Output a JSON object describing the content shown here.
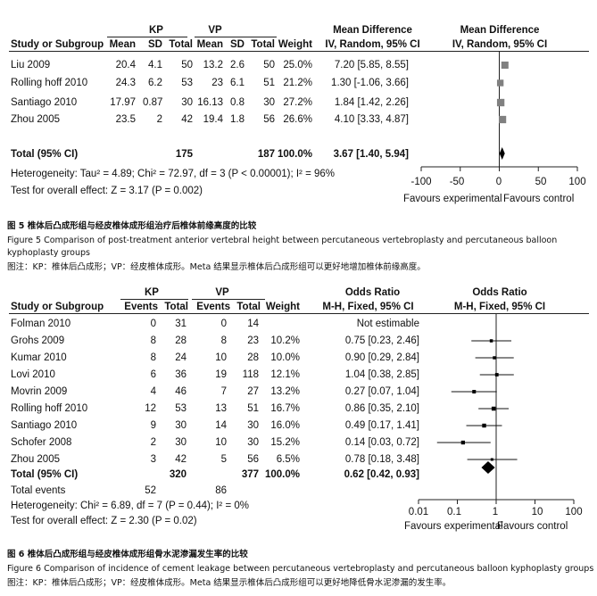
{
  "figure5": {
    "group_headers": {
      "kp": "KP",
      "vp": "VP",
      "effect": "Mean Difference",
      "effect_plot": "Mean Difference"
    },
    "columns": [
      "Study or Subgroup",
      "Mean",
      "SD",
      "Total",
      "Mean",
      "SD",
      "Total",
      "Weight",
      "IV, Random, 95% CI",
      "IV, Random, 95% CI"
    ],
    "rows": [
      {
        "study": "Liu 2009",
        "kp_mean": "20.4",
        "kp_sd": "4.1",
        "kp_total": "50",
        "vp_mean": "13.2",
        "vp_sd": "2.6",
        "vp_total": "50",
        "weight": "25.0%",
        "ci": "7.20 [5.85, 8.55]"
      },
      {
        "study": "Rolling hoff 2010",
        "kp_mean": "24.3",
        "kp_sd": "6.2",
        "kp_total": "53",
        "vp_mean": "23",
        "vp_sd": "6.1",
        "vp_total": "51",
        "weight": "21.2%",
        "ci": "1.30 [-1.06, 3.66]"
      },
      {
        "study": "Santiago 2010",
        "kp_mean": "17.97",
        "kp_sd": "0.87",
        "kp_total": "30",
        "vp_mean": "16.13",
        "vp_sd": "0.8",
        "vp_total": "30",
        "weight": "27.2%",
        "ci": "1.84 [1.42, 2.26]"
      },
      {
        "study": "Zhou 2005",
        "kp_mean": "23.5",
        "kp_sd": "2",
        "kp_total": "42",
        "vp_mean": "19.4",
        "vp_sd": "1.8",
        "vp_total": "56",
        "weight": "26.6%",
        "ci": "4.10 [3.33, 4.87]"
      }
    ],
    "total": {
      "label": "Total (95% CI)",
      "kp_total": "175",
      "vp_total": "187",
      "weight": "100.0%",
      "ci": "3.67 [1.40, 5.94]"
    },
    "heterogeneity": "Heterogeneity: Tau² = 4.89; Chi² = 72.97, df = 3 (P < 0.00001); I² = 96%",
    "overall_effect": "Test for overall effect: Z = 3.17 (P = 0.002)",
    "axis": {
      "ticks": [
        "-100",
        "-50",
        "0",
        "50",
        "100"
      ],
      "favours_left": "Favours experimental",
      "favours_right": "Favours control"
    },
    "caption_cn": "图 5   椎体后凸成形组与经皮椎体成形组治疗后椎体前缘高度的比较",
    "caption_en_1": "Figure 5    Comparison of post-treatment anterior vertebral height between percutaneous vertebroplasty and percutaneous balloon",
    "caption_en_2": "kyphoplasty groups",
    "caption_note": "图注：KP：椎体后凸成形；VP：经皮椎体成形。Meta 结果显示椎体后凸成形组可以更好地增加椎体前缘高度。"
  },
  "figure6": {
    "group_headers": {
      "kp": "KP",
      "vp": "VP",
      "effect": "Odds Ratio",
      "effect_plot": "Odds Ratio"
    },
    "columns": [
      "Study or Subgroup",
      "Events",
      "Total",
      "Events",
      "Total",
      "Weight",
      "M-H, Fixed, 95% CI",
      "M-H, Fixed, 95% CI"
    ],
    "rows": [
      {
        "study": "Folman 2010",
        "kp_events": "0",
        "kp_total": "31",
        "vp_events": "0",
        "vp_total": "14",
        "weight": "",
        "ci": "Not estimable"
      },
      {
        "study": "Grohs 2009",
        "kp_events": "8",
        "kp_total": "28",
        "vp_events": "8",
        "vp_total": "23",
        "weight": "10.2%",
        "ci": "0.75 [0.23, 2.46]"
      },
      {
        "study": "Kumar 2010",
        "kp_events": "8",
        "kp_total": "24",
        "vp_events": "10",
        "vp_total": "28",
        "weight": "10.0%",
        "ci": "0.90 [0.29, 2.84]"
      },
      {
        "study": "Lovi 2010",
        "kp_events": "6",
        "kp_total": "36",
        "vp_events": "19",
        "vp_total": "118",
        "weight": "12.1%",
        "ci": "1.04 [0.38, 2.85]"
      },
      {
        "study": "Movrin 2009",
        "kp_events": "4",
        "kp_total": "46",
        "vp_events": "7",
        "vp_total": "27",
        "weight": "13.2%",
        "ci": "0.27 [0.07, 1.04]"
      },
      {
        "study": "Rolling hoff 2010",
        "kp_events": "12",
        "kp_total": "53",
        "vp_events": "13",
        "vp_total": "51",
        "weight": "16.7%",
        "ci": "0.86 [0.35, 2.10]"
      },
      {
        "study": "Santiago 2010",
        "kp_events": "9",
        "kp_total": "30",
        "vp_events": "14",
        "vp_total": "30",
        "weight": "16.0%",
        "ci": "0.49 [0.17, 1.41]"
      },
      {
        "study": "Schofer 2008",
        "kp_events": "2",
        "kp_total": "30",
        "vp_events": "10",
        "vp_total": "30",
        "weight": "15.2%",
        "ci": "0.14 [0.03, 0.72]"
      },
      {
        "study": "Zhou 2005",
        "kp_events": "3",
        "kp_total": "42",
        "vp_events": "5",
        "vp_total": "56",
        "weight": "6.5%",
        "ci": "0.78 [0.18, 3.48]"
      }
    ],
    "total": {
      "label": "Total (95% CI)",
      "kp_total": "320",
      "vp_total": "377",
      "weight": "100.0%",
      "ci": "0.62 [0.42, 0.93]"
    },
    "total_events": {
      "label": "Total events",
      "kp": "52",
      "vp": "86"
    },
    "heterogeneity": "Heterogeneity: Chi² = 6.89, df = 7 (P = 0.44); I² = 0%",
    "overall_effect": "Test for overall effect: Z = 2.30 (P = 0.02)",
    "axis": {
      "ticks": [
        "0.01",
        "0.1",
        "1",
        "10",
        "100"
      ],
      "favours_left": "Favours experimental",
      "favours_right": "Favours control"
    },
    "caption_cn": "图 6   椎体后凸成形组与经皮椎体成形组骨水泥渗漏发生率的比较",
    "caption_en_1": "Figure 6    Comparison of incidence of cement leakage between percutaneous vertebroplasty and percutaneous balloon kyphoplasty groups",
    "caption_note": "图注：KP：椎体后凸成形；VP：经皮椎体成形。Meta 结果显示椎体后凸成形组可以更好地降低骨水泥渗漏的发生率。"
  },
  "chart_data": [
    {
      "type": "scatter",
      "x_scale": "linear",
      "xlim": [
        -100,
        100
      ],
      "x_ticks": [
        -100,
        -50,
        0,
        50,
        100
      ],
      "null_line": 0,
      "studies": [
        {
          "name": "Liu 2009",
          "estimate": 7.2,
          "lower": 5.85,
          "upper": 8.55,
          "weight": 25.0
        },
        {
          "name": "Rolling hoff 2010",
          "estimate": 1.3,
          "lower": -1.06,
          "upper": 3.66,
          "weight": 21.2
        },
        {
          "name": "Santiago 2010",
          "estimate": 1.84,
          "lower": 1.42,
          "upper": 2.26,
          "weight": 27.2
        },
        {
          "name": "Zhou 2005",
          "estimate": 4.1,
          "lower": 3.33,
          "upper": 4.87,
          "weight": 26.6
        }
      ],
      "pooled": {
        "estimate": 3.67,
        "lower": 1.4,
        "upper": 5.94
      },
      "marker_color": "#808080"
    },
    {
      "type": "scatter",
      "x_scale": "log",
      "xlim": [
        0.01,
        100
      ],
      "x_ticks": [
        0.01,
        0.1,
        1,
        10,
        100
      ],
      "null_line": 1,
      "studies": [
        {
          "name": "Folman 2010",
          "estimate": null,
          "lower": null,
          "upper": null,
          "weight": null
        },
        {
          "name": "Grohs 2009",
          "estimate": 0.75,
          "lower": 0.23,
          "upper": 2.46,
          "weight": 10.2
        },
        {
          "name": "Kumar 2010",
          "estimate": 0.9,
          "lower": 0.29,
          "upper": 2.84,
          "weight": 10.0
        },
        {
          "name": "Lovi 2010",
          "estimate": 1.04,
          "lower": 0.38,
          "upper": 2.85,
          "weight": 12.1
        },
        {
          "name": "Movrin 2009",
          "estimate": 0.27,
          "lower": 0.07,
          "upper": 1.04,
          "weight": 13.2
        },
        {
          "name": "Rolling hoff 2010",
          "estimate": 0.86,
          "lower": 0.35,
          "upper": 2.1,
          "weight": 16.7
        },
        {
          "name": "Santiago 2010",
          "estimate": 0.49,
          "lower": 0.17,
          "upper": 1.41,
          "weight": 16.0
        },
        {
          "name": "Schofer 2008",
          "estimate": 0.14,
          "lower": 0.03,
          "upper": 0.72,
          "weight": 15.2
        },
        {
          "name": "Zhou 2005",
          "estimate": 0.78,
          "lower": 0.18,
          "upper": 3.48,
          "weight": 6.5
        }
      ],
      "pooled": {
        "estimate": 0.62,
        "lower": 0.42,
        "upper": 0.93
      },
      "marker_color": "#000000"
    }
  ]
}
